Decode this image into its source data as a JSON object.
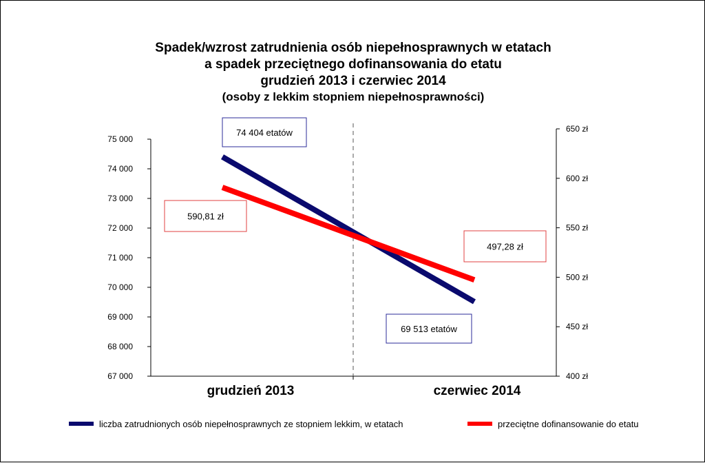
{
  "chart_data": {
    "type": "line",
    "title": [
      "Spadek/wzrost zatrudnienia osób niepełnosprawnych w etatach",
      "a spadek przeciętnego dofinansowania do etatu",
      "grudzień 2013 i czerwiec 2014",
      "(osoby z lekkim stopniem niepełnosprawności)"
    ],
    "categories": [
      "grudzień 2013",
      "czerwiec 2014"
    ],
    "left_axis": {
      "ylim": [
        67000,
        75000
      ],
      "ticks": [
        75000,
        74000,
        73000,
        72000,
        71000,
        70000,
        69000,
        68000,
        67000
      ],
      "tick_labels": [
        "75 000",
        "74 000",
        "73 000",
        "72 000",
        "71 000",
        "70 000",
        "69 000",
        "68 000",
        "67 000"
      ]
    },
    "right_axis": {
      "ylim": [
        400,
        650
      ],
      "ticks": [
        650,
        600,
        550,
        500,
        450,
        400
      ],
      "tick_labels": [
        "650 zł",
        "600 zł",
        "550 zł",
        "500 zł",
        "450 zł",
        "400 zł"
      ]
    },
    "series": [
      {
        "name": "liczba zatrudnionych osób niepełnosprawnych ze stopniem lekkim, w etatach",
        "axis": "left",
        "values": [
          74404,
          69513
        ],
        "labels": [
          "74 404 etatów",
          "69 513 etatów"
        ],
        "color": "#0a0a6e",
        "label_border": "#2b2b9a"
      },
      {
        "name": "przeciętne dofinansowanie do etatu",
        "axis": "right",
        "values": [
          590.81,
          497.28
        ],
        "labels": [
          "590,81 zł",
          "497,28 zł"
        ],
        "color": "#ff0000",
        "label_border": "#e04040"
      }
    ],
    "legend_position": "bottom"
  }
}
